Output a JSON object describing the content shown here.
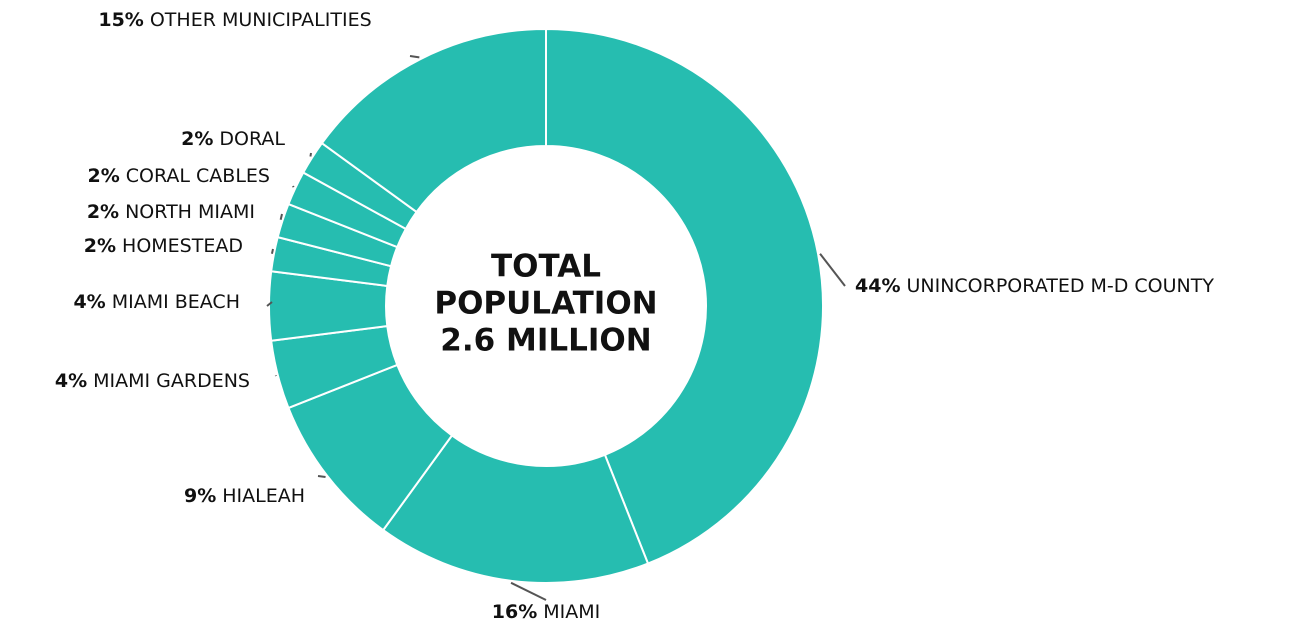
{
  "chart_data": {
    "type": "donut",
    "center_label": [
      "TOTAL",
      "POPULATION",
      "2.6 MILLION"
    ],
    "categories": [
      "UNINCORPORATED M-D COUNTY",
      "MIAMI",
      "HIALEAH",
      "MIAMI GARDENS",
      "MIAMI BEACH",
      "HOMESTEAD",
      "NORTH MIAMI",
      "CORAL CABLES",
      "DORAL",
      "OTHER MUNICIPALITIES"
    ],
    "values": [
      44,
      16,
      9,
      4,
      4,
      2,
      2,
      2,
      2,
      15
    ],
    "value_labels": [
      "44%",
      "16%",
      "9%",
      "4%",
      "4%",
      "2%",
      "2%",
      "2%",
      "2%",
      "15%"
    ],
    "color": "#26bdb0"
  }
}
